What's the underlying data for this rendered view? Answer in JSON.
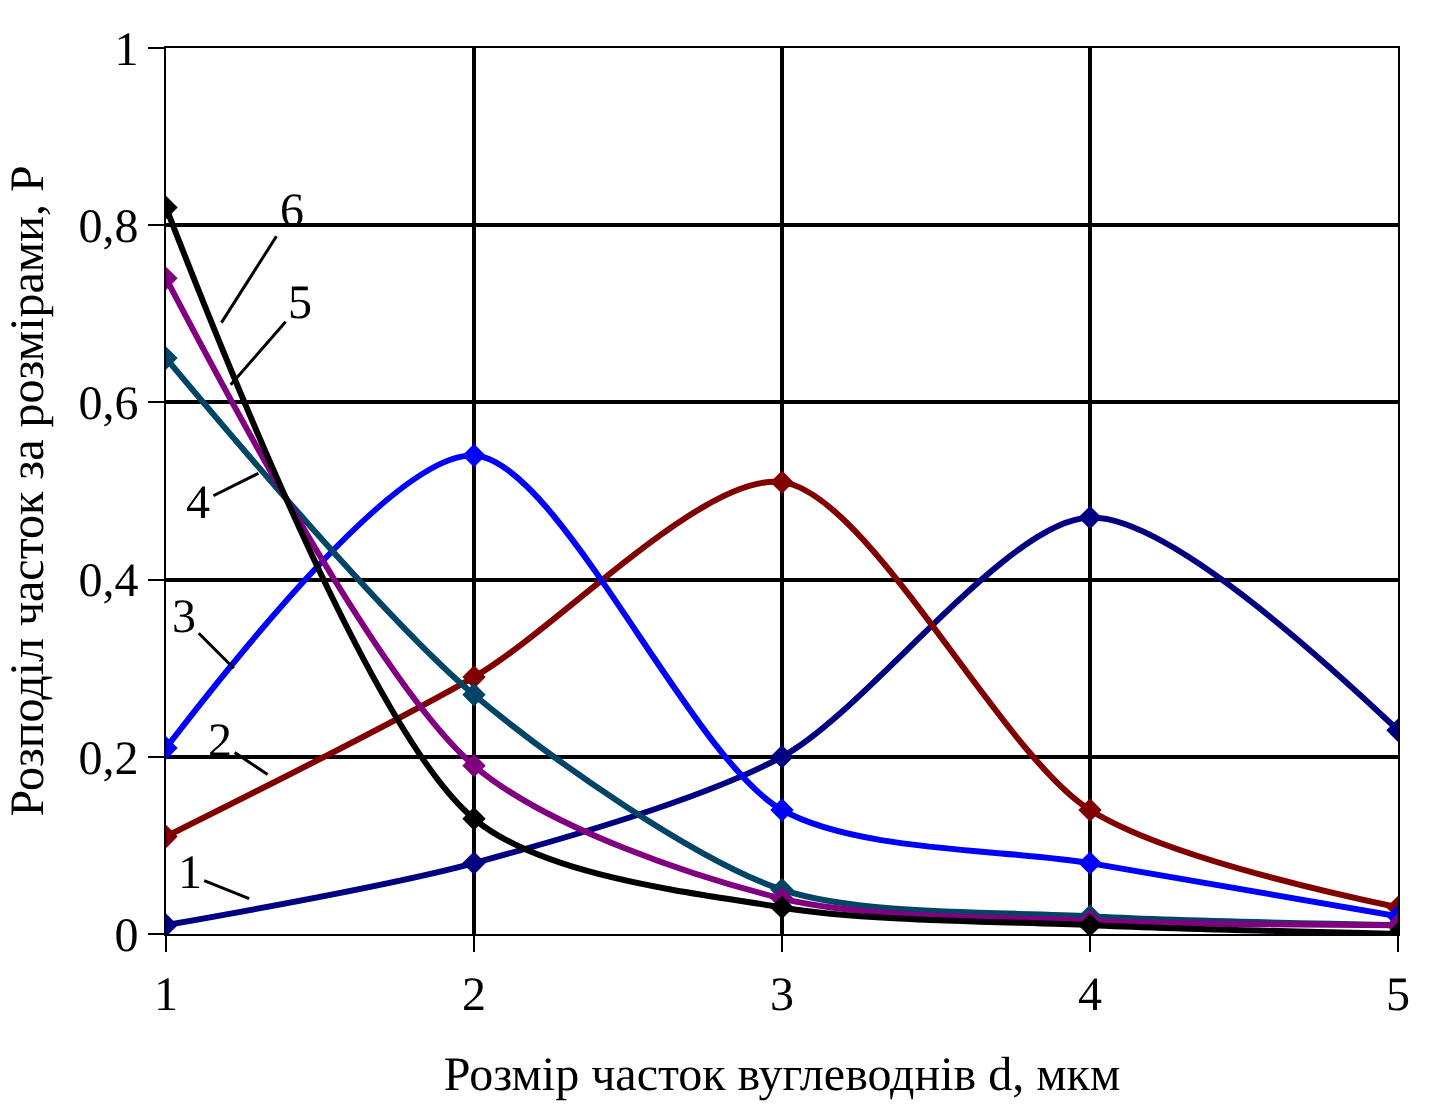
{
  "chart_data": {
    "type": "line",
    "xlabel": "Розмір часток вуглеводнів d, мкм",
    "ylabel": "Розподіл часток за розмірами, P",
    "x": [
      1,
      2,
      3,
      4,
      5
    ],
    "series": [
      {
        "color": "#000080",
        "values": [
          0.01,
          0.08,
          0.2,
          0.47,
          0.23
        ]
      },
      {
        "color": "#800000",
        "values": [
          0.11,
          0.29,
          0.51,
          0.14,
          0.03
        ]
      },
      {
        "color": "#0000ff",
        "values": [
          0.21,
          0.54,
          0.14,
          0.08,
          0.02
        ]
      },
      {
        "color": "#004466",
        "values": [
          0.65,
          0.27,
          0.05,
          0.02,
          0.01
        ]
      },
      {
        "color": "#800080",
        "values": [
          0.74,
          0.19,
          0.04,
          0.015,
          0.01
        ]
      },
      {
        "color": "#000000",
        "values": [
          0.82,
          0.13,
          0.03,
          0.01,
          0
        ]
      }
    ],
    "xlim": [
      1,
      5
    ],
    "xticks": [
      1,
      2,
      3,
      4,
      5
    ],
    "ylim": [
      0,
      1
    ],
    "yticks": [
      0,
      {
        "value": 0.2,
        "label": "0,2"
      },
      {
        "value": 0.4,
        "label": "0,4"
      },
      {
        "value": 0.6,
        "label": "0,6"
      },
      {
        "value": 0.8,
        "label": "0,8"
      },
      1
    ],
    "grid": true,
    "marker": "diamond",
    "line_style": "solid",
    "annotations": [
      {
        "text": "1",
        "x": 1.27,
        "y": 0.04
      },
      {
        "text": "2",
        "x": 1.33,
        "y": 0.18
      },
      {
        "text": "3",
        "x": 1.22,
        "y": 0.3
      },
      {
        "text": "4",
        "x": 1.3,
        "y": 0.52
      },
      {
        "text": "5",
        "x": 1.21,
        "y": 0.62
      },
      {
        "text": "6",
        "x": 1.18,
        "y": 0.69
      }
    ]
  }
}
